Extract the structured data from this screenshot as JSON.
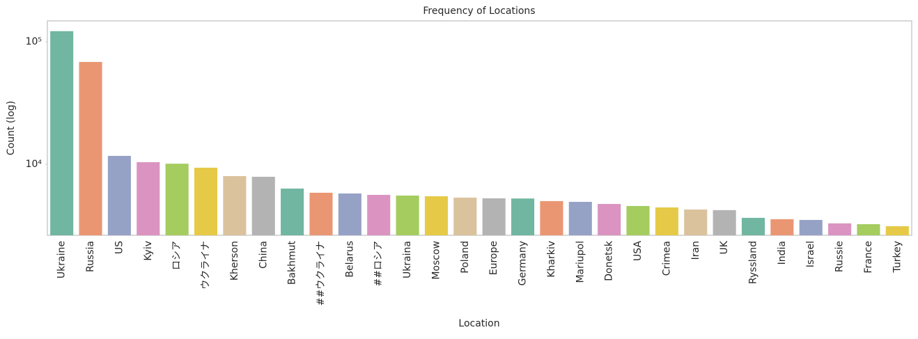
{
  "chart_data": {
    "type": "bar",
    "title": "Frequency of Locations",
    "x_label": "Location",
    "y_label": "Count (log)",
    "log_scale": true,
    "grid": false,
    "categories": [
      "Ukraine",
      "Russia",
      "US",
      "Kyiv",
      "ロシア",
      "ウクライナ",
      "Kherson",
      "China",
      "Bakhmut",
      "##ウクライナ",
      "Belarus",
      "##ロシア",
      "Ukraina",
      "Moscow",
      "Poland",
      "Europe",
      "Germany",
      "Kharkiv",
      "Mariupol",
      "Donetsk",
      "USA",
      "Crimea",
      "Iran",
      "UK",
      "Ryssland",
      "India",
      "Israel",
      "Russie",
      "France",
      "Turkey"
    ],
    "values": [
      122000,
      68400,
      11700,
      10400,
      10100,
      9370,
      8000,
      7900,
      6330,
      5850,
      5770,
      5620,
      5550,
      5480,
      5340,
      5270,
      5250,
      5000,
      4930,
      4740,
      4560,
      4440,
      4270,
      4220,
      3650,
      3560,
      3510,
      3290,
      3240,
      3120
    ],
    "colors": [
      "#71b6a1",
      "#ea9673",
      "#96a2c5",
      "#db94c1",
      "#a5cc5f",
      "#e6ca47",
      "#dac29d",
      "#b3b3b3"
    ],
    "ylim": [
      2630,
      148000
    ],
    "yticks": [
      {
        "value": 10000,
        "label": "10⁴"
      },
      {
        "value": 100000,
        "label": "10⁵"
      }
    ]
  }
}
